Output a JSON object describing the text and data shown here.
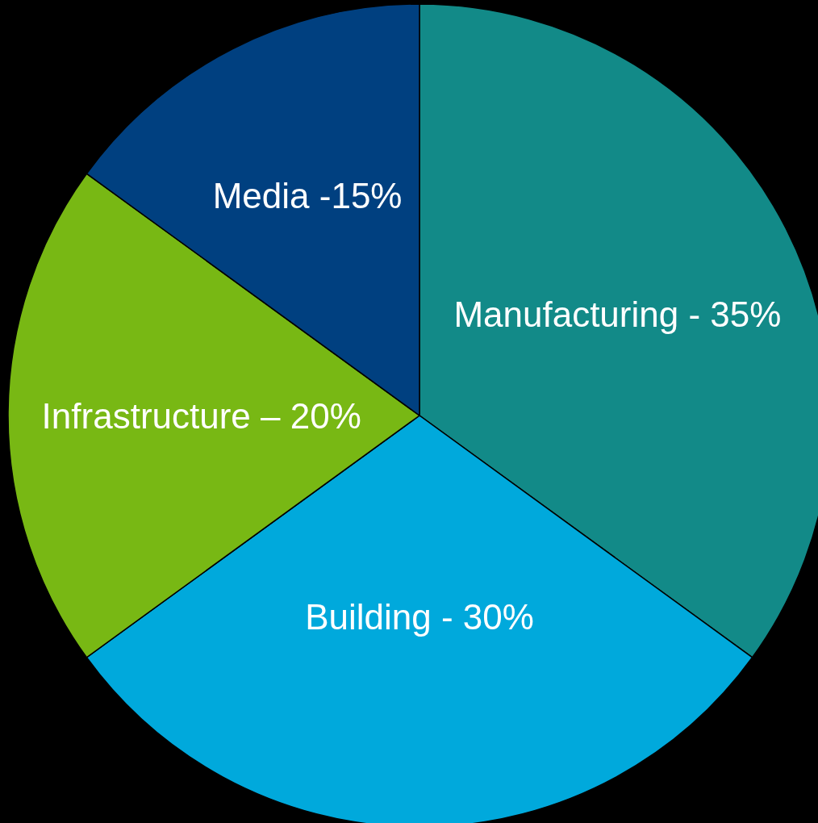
{
  "chart_data": {
    "type": "pie",
    "categories": [
      "Manufacturing - 35%",
      "Building - 30%",
      "Infrastructure – 20%",
      "Media -15%"
    ],
    "values": [
      35,
      30,
      20,
      15
    ],
    "colors": [
      "#128a88",
      "#00a9dc",
      "#78b814",
      "#004080"
    ]
  }
}
